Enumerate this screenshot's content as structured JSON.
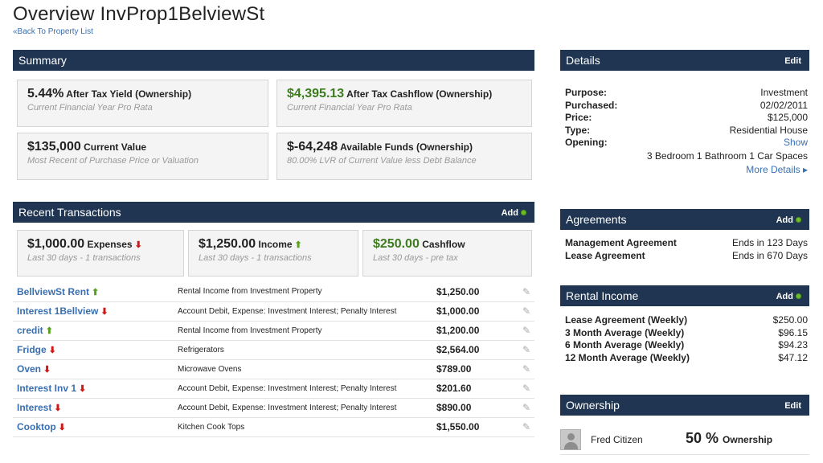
{
  "page": {
    "title": "Overview InvProp1BelviewSt",
    "back_link": "«Back To Property List"
  },
  "summary": {
    "header": "Summary",
    "cards": [
      {
        "value": "5.44%",
        "label": "After Tax Yield (Ownership)",
        "sub": "Current Financial Year Pro Rata",
        "accent": "#222222"
      },
      {
        "value": "$4,395.13",
        "label": "After Tax Cashflow (Ownership)",
        "sub": "Current Financial Year Pro Rata",
        "accent": "#3c7c1e"
      },
      {
        "value": "$135,000",
        "label": "Current Value",
        "sub": "Most Recent of Purchase Price or Valuation",
        "accent": "#222222"
      },
      {
        "value": "$-64,248",
        "label": "Available Funds (Ownership)",
        "sub": "80.00% LVR of Current Value less Debt Balance",
        "accent": "#222222"
      }
    ]
  },
  "transactions": {
    "header": "Recent Transactions",
    "add_label": "Add",
    "stats": [
      {
        "value": "$1,000.00",
        "label": "Expenses",
        "sub": "Last 30 days - 1 transactions",
        "direction": "down"
      },
      {
        "value": "$1,250.00",
        "label": "Income",
        "sub": "Last 30 days - 1 transactions",
        "direction": "up"
      },
      {
        "value": "$250.00",
        "label": "Cashflow",
        "sub": "Last 30 days - pre tax",
        "direction": "none"
      }
    ],
    "rows": [
      {
        "name": "BellviewSt Rent",
        "direction": "up",
        "description": "Rental Income from Investment Property",
        "amount": "$1,250.00"
      },
      {
        "name": "Interest 1Bellview",
        "direction": "down",
        "description": "Account Debit, Expense: Investment Interest; Penalty Interest",
        "amount": "$1,000.00"
      },
      {
        "name": "credit",
        "direction": "up",
        "description": "Rental Income from Investment Property",
        "amount": "$1,200.00"
      },
      {
        "name": "Fridge",
        "direction": "down",
        "description": "Refrigerators",
        "amount": "$2,564.00"
      },
      {
        "name": "Oven",
        "direction": "down",
        "description": "Microwave Ovens",
        "amount": "$789.00"
      },
      {
        "name": "Interest Inv 1",
        "direction": "down",
        "description": "Account Debit, Expense: Investment Interest; Penalty Interest",
        "amount": "$201.60"
      },
      {
        "name": "Interest",
        "direction": "down",
        "description": "Account Debit, Expense: Investment Interest; Penalty Interest",
        "amount": "$890.00"
      },
      {
        "name": "Cooktop",
        "direction": "down",
        "description": "Kitchen Cook Tops",
        "amount": "$1,550.00"
      }
    ]
  },
  "details": {
    "header": "Details",
    "edit_label": "Edit",
    "rows": [
      {
        "key": "Purpose:",
        "value": "Investment"
      },
      {
        "key": "Purchased:",
        "value": "02/02/2011"
      },
      {
        "key": "Price:",
        "value": "$125,000"
      },
      {
        "key": "Type:",
        "value": "Residential House"
      },
      {
        "key": "Opening:",
        "value": "Show"
      }
    ],
    "rooms": "3 Bedroom 1 Bathroom 1 Car Spaces",
    "more_label": "More Details ▸"
  },
  "agreements": {
    "header": "Agreements",
    "add_label": "Add",
    "rows": [
      {
        "key": "Management Agreement",
        "value": "Ends in 123 Days"
      },
      {
        "key": "Lease Agreement",
        "value": "Ends in 670 Days"
      }
    ]
  },
  "rental_income": {
    "header": "Rental Income",
    "add_label": "Add",
    "rows": [
      {
        "key": "Lease Agreement (Weekly)",
        "value": "$250.00"
      },
      {
        "key": "3 Month Average (Weekly)",
        "value": "$96.15"
      },
      {
        "key": "6 Month Average (Weekly)",
        "value": "$94.23"
      },
      {
        "key": "12 Month Average (Weekly)",
        "value": "$47.12"
      }
    ]
  },
  "ownership": {
    "header": "Ownership",
    "edit_label": "Edit",
    "owner_name": "Fred Citizen",
    "percent": "50 %",
    "percent_label": "Ownership"
  },
  "icons": {
    "up": "arrow-up-icon",
    "down": "arrow-down-icon",
    "add": "add-circle-icon",
    "edit": "pencil-icon",
    "avatar": "user-avatar-icon"
  },
  "colors": {
    "header_bg": "#1f3551",
    "link": "#3a6fb0",
    "positive": "#3c7c1e",
    "up_arrow": "#5aa020",
    "down_arrow": "#d01818"
  }
}
